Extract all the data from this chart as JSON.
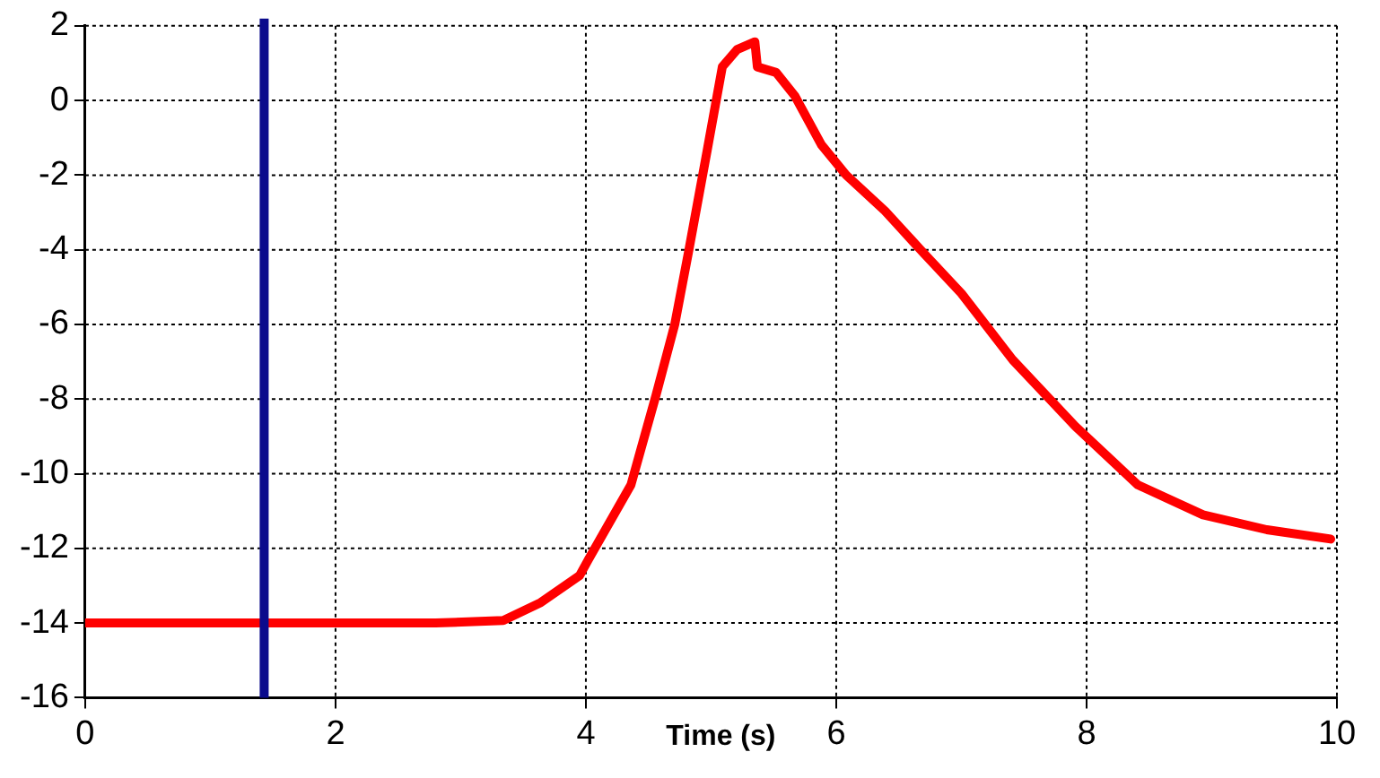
{
  "chart_data": {
    "type": "line",
    "xlabel": "Time (s)",
    "series": [
      {
        "color": "#ff0000",
        "x": [
          0,
          1,
          2,
          2.8,
          3.34,
          3.64,
          3.95,
          4.02,
          4.36,
          4.56,
          4.71,
          4.82,
          4.97,
          5.09,
          5.21,
          5.35,
          5.37,
          5.52,
          5.67,
          5.88,
          6.08,
          6.39,
          6.69,
          7.0,
          7.41,
          7.91,
          8.41,
          8.93,
          9.44,
          9.95
        ],
        "values": [
          -14,
          -14,
          -14,
          -14,
          -13.93,
          -13.45,
          -12.73,
          -12.3,
          -10.3,
          -7.9,
          -6.0,
          -4.06,
          -1.32,
          0.9,
          1.37,
          1.57,
          0.9,
          0.75,
          0.12,
          -1.18,
          -2.0,
          -2.96,
          -4.06,
          -5.17,
          -6.95,
          -8.73,
          -10.3,
          -11.1,
          -11.5,
          -11.75
        ]
      }
    ],
    "xlim": [
      0,
      10
    ],
    "xticks": [
      0,
      2,
      4,
      6,
      8,
      10
    ],
    "ylim": [
      -16,
      2
    ],
    "yticks": [
      -16,
      -14,
      -12,
      -10,
      -8,
      -6,
      -4,
      -2,
      0,
      2
    ],
    "ref_lines": [
      {
        "axis": "x",
        "value": 1.43,
        "color": "#0a0a8c"
      }
    ],
    "grid": true,
    "marker": "none",
    "line_style": "solid"
  }
}
